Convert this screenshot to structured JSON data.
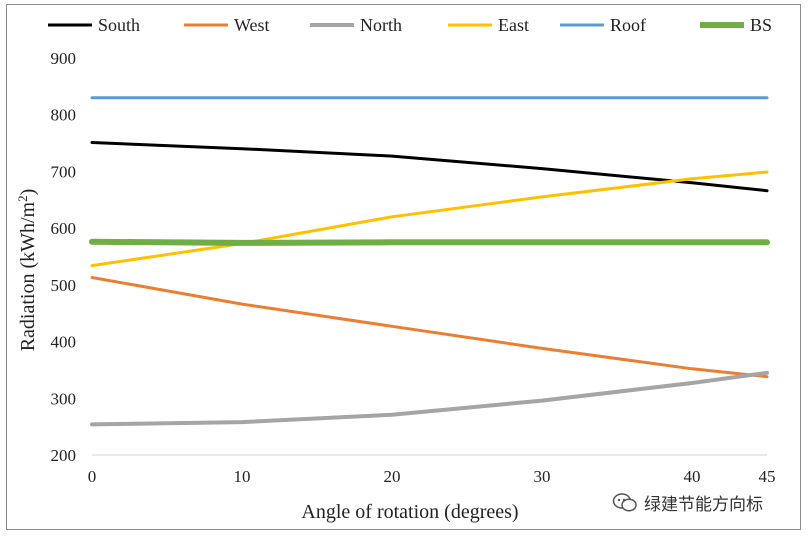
{
  "chart_data": {
    "type": "line",
    "title": "",
    "xlabel": "Angle of rotation (degrees)",
    "ylabel": "Radiation (kWh/m²)",
    "ylabel_main": "Radiation (kWh/m",
    "ylabel_sup": "2",
    "ylabel_tail": ")",
    "x": [
      0,
      10,
      20,
      30,
      40,
      45
    ],
    "x_tick_labels": [
      "0",
      "10",
      "20",
      "30",
      "40",
      "45"
    ],
    "ylim": [
      200,
      900
    ],
    "y_ticks": [
      200,
      300,
      400,
      500,
      600,
      700,
      800,
      900
    ],
    "y_tick_labels": [
      "200",
      "300",
      "400",
      "500",
      "600",
      "700",
      "800",
      "900"
    ],
    "grid": false,
    "legend_position": "top",
    "series": [
      {
        "name": "South",
        "color": "#000000",
        "width": 3,
        "values": [
          751,
          740,
          727,
          705,
          680,
          666
        ]
      },
      {
        "name": "West",
        "color": "#ED7D31",
        "width": 3,
        "values": [
          513,
          466,
          427,
          388,
          352,
          338
        ]
      },
      {
        "name": "North",
        "color": "#A5A5A5",
        "width": 4,
        "values": [
          254,
          258,
          271,
          296,
          327,
          345
        ]
      },
      {
        "name": "East",
        "color": "#FFC000",
        "width": 3,
        "values": [
          534,
          573,
          620,
          655,
          687,
          699
        ]
      },
      {
        "name": "Roof",
        "color": "#5B9BD5",
        "width": 3,
        "values": [
          830,
          830,
          830,
          830,
          830,
          830
        ]
      },
      {
        "name": "BS",
        "color": "#70AD47",
        "width": 6,
        "values": [
          576,
          574,
          575,
          575,
          575,
          575
        ]
      }
    ]
  },
  "watermark": {
    "text": "绿建节能方向标",
    "icon": "wechat-bubble-icon"
  }
}
